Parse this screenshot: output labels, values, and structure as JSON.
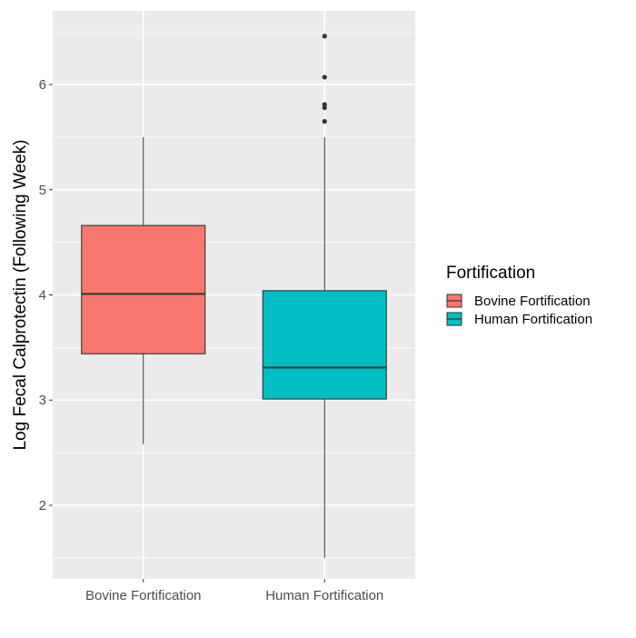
{
  "chart_data": {
    "type": "box",
    "title": "",
    "xlabel": "",
    "ylabel": "Log Fecal Calprotectin (Following Week)",
    "ylim": [
      1.3,
      6.7
    ],
    "y_ticks": [
      2,
      3,
      4,
      5,
      6
    ],
    "y_tick_labels": [
      "2",
      "3",
      "4",
      "5",
      "6"
    ],
    "categories": [
      "Bovine Fortification",
      "Human Fortification"
    ],
    "boxes": [
      {
        "name": "Bovine Fortification",
        "color": "#F8766D",
        "whisker_low": 2.58,
        "q1": 3.44,
        "median": 4.01,
        "q3": 4.66,
        "whisker_high": 5.5,
        "outliers": []
      },
      {
        "name": "Human Fortification",
        "color": "#00BFC4",
        "whisker_low": 1.5,
        "q1": 3.01,
        "median": 3.31,
        "q3": 4.04,
        "whisker_high": 5.5,
        "outliers": [
          5.65,
          5.78,
          5.81,
          6.07,
          6.46
        ]
      }
    ],
    "legend": {
      "title": "Fortification",
      "position": "right",
      "entries": [
        {
          "label": "Bovine Fortification",
          "color": "#F8766D"
        },
        {
          "label": "Human Fortification",
          "color": "#00BFC4"
        }
      ]
    },
    "grid": true,
    "panel_background": "#EBEBEB",
    "grid_color": "#FFFFFF"
  }
}
